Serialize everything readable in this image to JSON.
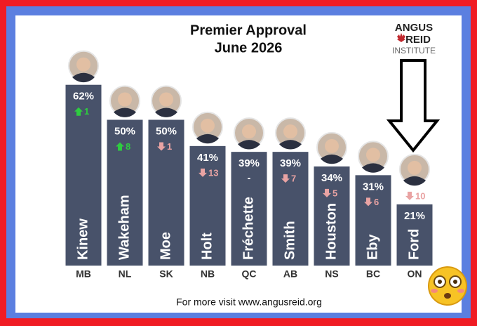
{
  "chart_data": {
    "type": "bar",
    "title": "Premier Approval",
    "subtitle": "June 2026",
    "logo": {
      "line1": "ANGUS",
      "line2": "REID",
      "line3": "INSTITUTE"
    },
    "source": "For more visit www.angusreid.org",
    "categories": [
      "MB",
      "NL",
      "SK",
      "NB",
      "QC",
      "AB",
      "NS",
      "BC",
      "ON"
    ],
    "labels": [
      "Kinew",
      "Wakeham",
      "Moe",
      "Holt",
      "Fréchette",
      "Smith",
      "Houston",
      "Eby",
      "Ford"
    ],
    "values": [
      62,
      50,
      50,
      41,
      39,
      39,
      34,
      31,
      21
    ],
    "value_labels": [
      "62%",
      "50%",
      "50%",
      "41%",
      "39%",
      "39%",
      "34%",
      "31%",
      "21%"
    ],
    "color": "#48526a",
    "changes": {
      "values": [
        1,
        8,
        -1,
        -13,
        null,
        -7,
        -5,
        -6,
        -10
      ],
      "value_labels": [
        "1",
        "8",
        "1",
        "13",
        "-",
        "7",
        "5",
        "6",
        "10"
      ],
      "up_color": "#2ecc40",
      "down_color": "#e9a3a3"
    }
  }
}
